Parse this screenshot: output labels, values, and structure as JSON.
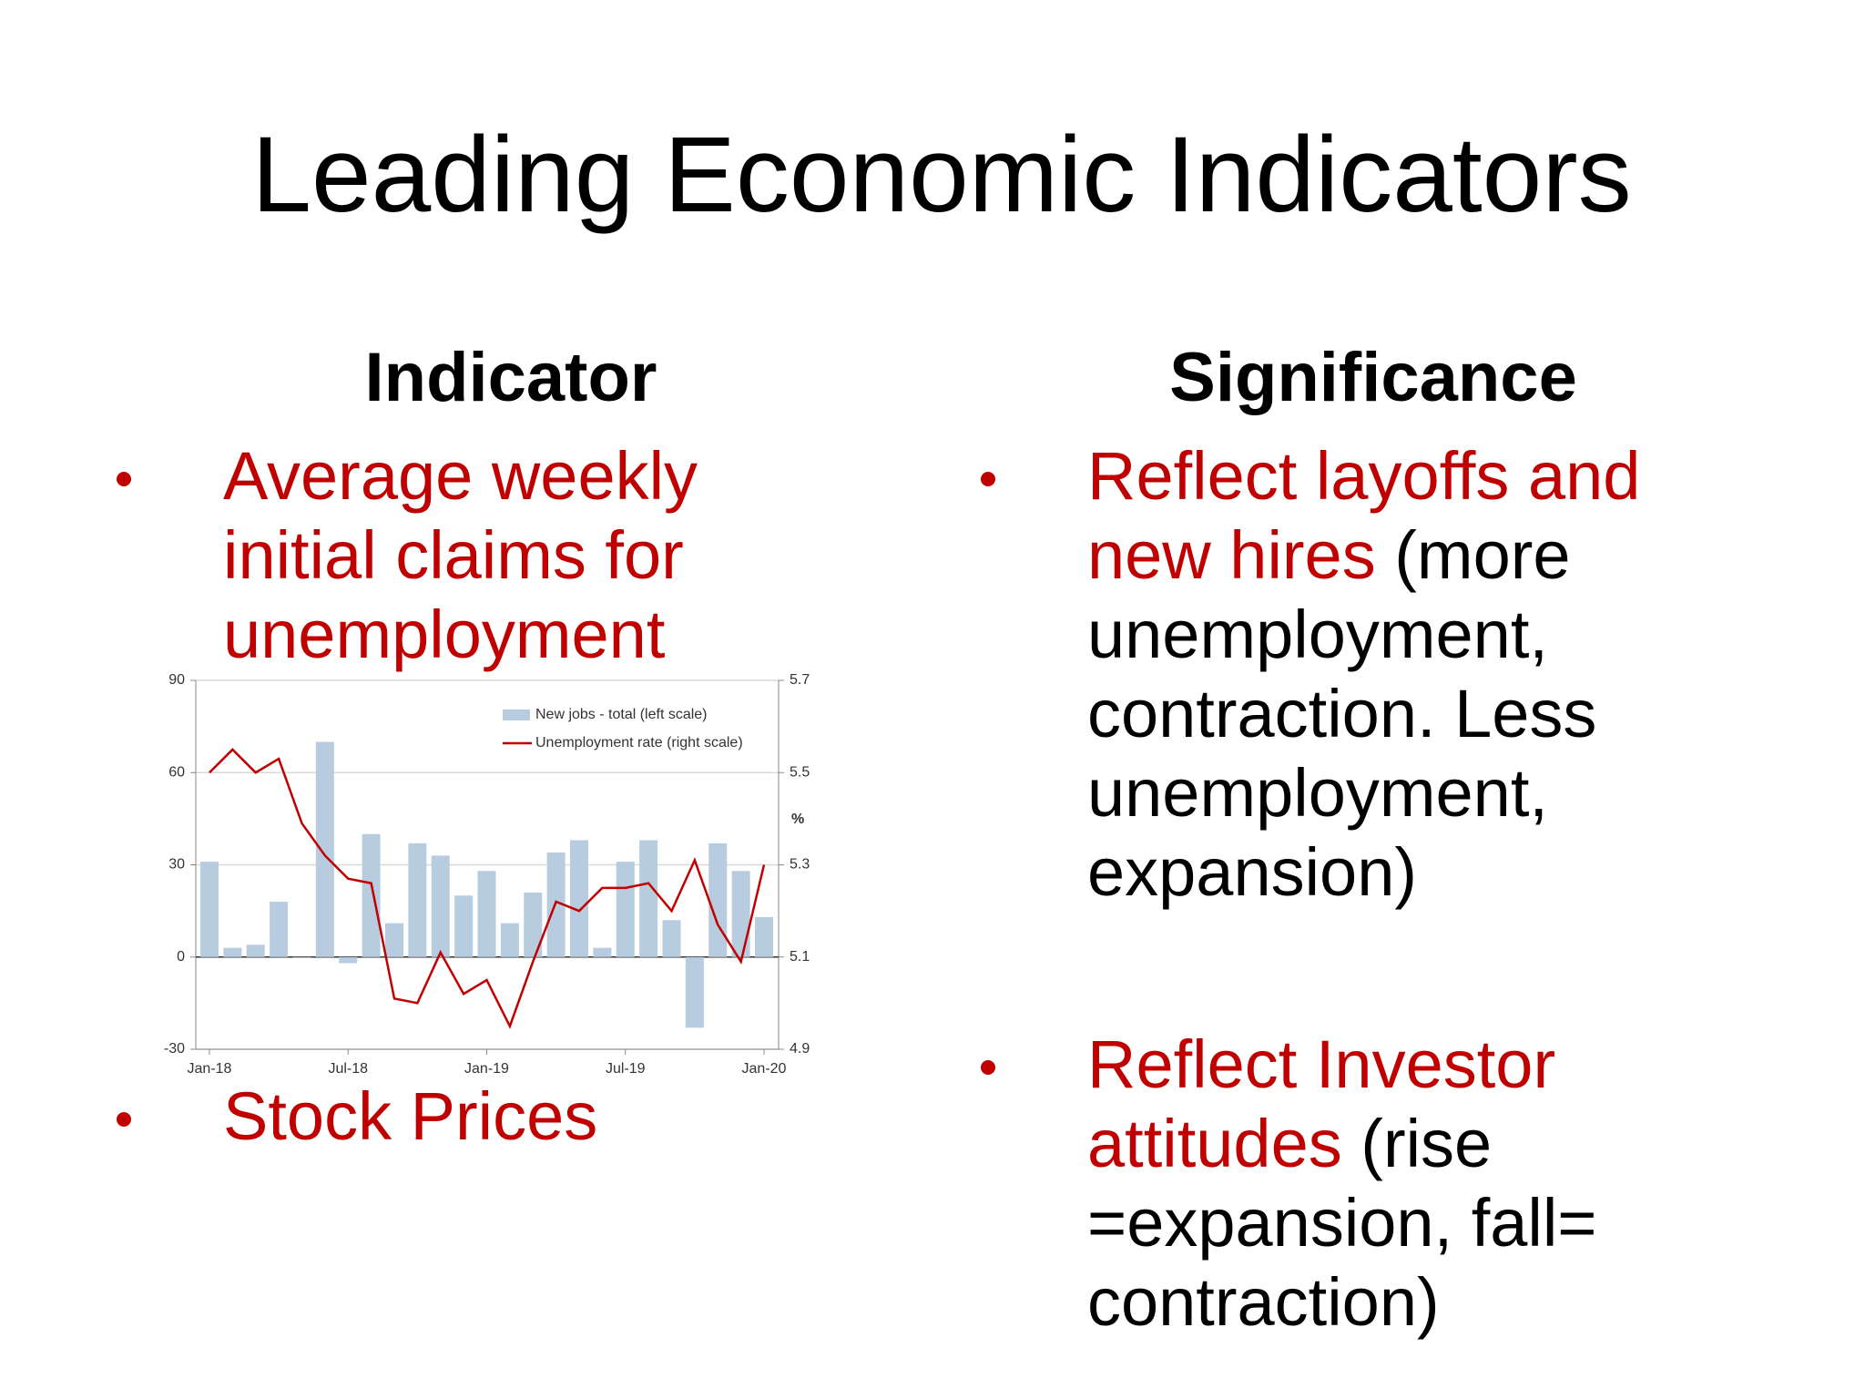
{
  "title": "Leading Economic Indicators",
  "columns": [
    {
      "heading": "Indicator",
      "bullets": [
        {
          "lines": [
            [
              {
                "text": "Average weekly",
                "color": "#c00000"
              }
            ],
            [
              {
                "text": "initial claims for",
                "color": "#c00000"
              }
            ],
            [
              {
                "text": "unemployment",
                "color": "#c00000"
              }
            ]
          ]
        },
        {
          "lines": [
            [
              {
                "text": "Stock Prices",
                "color": "#c00000"
              }
            ]
          ]
        }
      ]
    },
    {
      "heading": "Significance",
      "bullets": [
        {
          "lines": [
            [
              {
                "text": "Reflect layoffs and",
                "color": "#c00000"
              }
            ],
            [
              {
                "text": "new hires",
                "color": "#c00000"
              },
              {
                "text": " (more",
                "color": "#000000"
              }
            ],
            [
              {
                "text": "unemployment,",
                "color": "#000000"
              }
            ],
            [
              {
                "text": "contraction. Less",
                "color": "#000000"
              }
            ],
            [
              {
                "text": "unemployment,",
                "color": "#000000"
              }
            ],
            [
              {
                "text": "expansion)",
                "color": "#000000"
              }
            ]
          ]
        },
        {
          "lines": [
            [
              {
                "text": "Reflect Investor",
                "color": "#c00000"
              }
            ],
            [
              {
                "text": "attitudes",
                "color": "#c00000"
              },
              {
                "text": " (rise",
                "color": "#000000"
              }
            ],
            [
              {
                "text": "=expansion, fall=",
                "color": "#000000"
              }
            ],
            [
              {
                "text": "contraction)",
                "color": "#000000"
              }
            ]
          ]
        }
      ]
    }
  ],
  "chart_data": {
    "type": "combo",
    "categories": [
      "Jan-18",
      null,
      null,
      null,
      null,
      null,
      "Jul-18",
      null,
      null,
      null,
      null,
      null,
      "Jan-19",
      null,
      null,
      null,
      null,
      null,
      "Jul-19",
      null,
      null,
      null,
      null,
      null,
      "Jan-20"
    ],
    "series": [
      {
        "name": "New jobs - total (left scale)",
        "type": "bar",
        "color": "#b8cce0",
        "values": [
          31,
          3,
          4,
          18,
          0,
          70,
          -2,
          40,
          11,
          37,
          33,
          20,
          28,
          11,
          21,
          34,
          38,
          3,
          31,
          38,
          12,
          -23,
          37,
          28,
          13
        ]
      },
      {
        "name": "Unemployment rate (right scale)",
        "type": "line",
        "axis": "y2",
        "color": "#c00000",
        "values": [
          5.5,
          5.55,
          5.5,
          5.53,
          5.39,
          5.32,
          5.27,
          5.26,
          5.01,
          5.0,
          5.11,
          5.02,
          5.05,
          4.95,
          5.09,
          5.22,
          5.2,
          5.25,
          5.25,
          5.26,
          5.2,
          5.31,
          5.17,
          5.09,
          5.3
        ]
      }
    ],
    "ylim": [
      -30,
      90
    ],
    "yticks": [
      -30,
      0,
      30,
      60,
      90
    ],
    "y2lim": [
      4.9,
      5.7
    ],
    "y2ticks": [
      4.9,
      5.1,
      5.3,
      5.5,
      5.7
    ],
    "y2label": "%",
    "grid": true
  }
}
